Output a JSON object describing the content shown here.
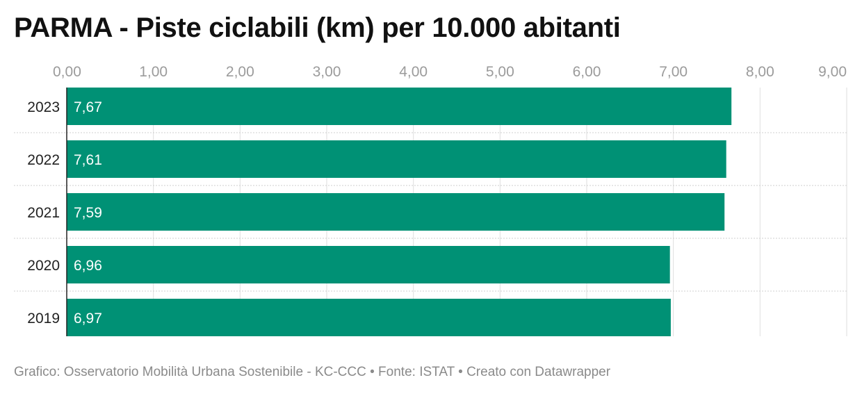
{
  "chart_data": {
    "type": "bar",
    "orientation": "horizontal",
    "title": "PARMA - Piste ciclabili (km) per 10.000 abitanti",
    "categories": [
      "2023",
      "2022",
      "2021",
      "2020",
      "2019"
    ],
    "values": [
      7.67,
      7.61,
      7.59,
      6.96,
      6.97
    ],
    "value_labels": [
      "7,67",
      "7,61",
      "7,59",
      "6,96",
      "6,97"
    ],
    "xlim": [
      0,
      9
    ],
    "ticks": [
      0,
      1,
      2,
      3,
      4,
      5,
      6,
      7,
      8,
      9
    ],
    "tick_labels": [
      "0,00",
      "1,00",
      "2,00",
      "3,00",
      "4,00",
      "5,00",
      "6,00",
      "7,00",
      "8,00",
      "9,00"
    ],
    "bar_color": "#009175",
    "grid": true,
    "axis_position": "top"
  },
  "footer": "Grafico: Osservatorio Mobilità Urbana Sostenibile - KC-CCC • Fonte: ISTAT • Creato con Datawrapper"
}
